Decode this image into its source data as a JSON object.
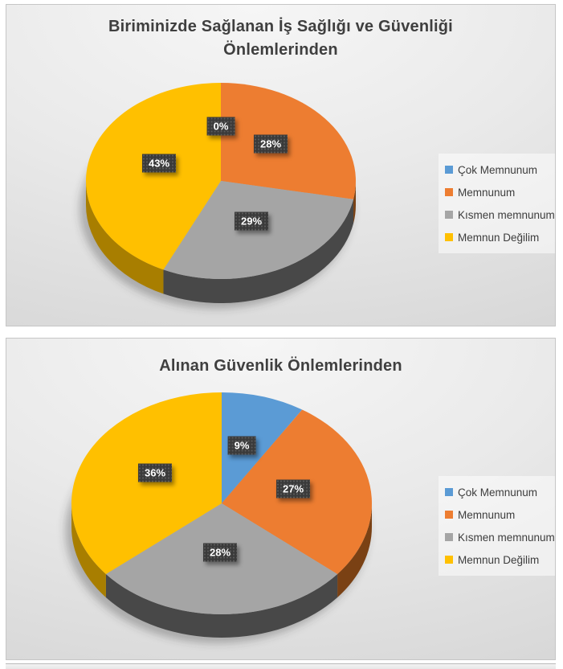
{
  "chart_data": [
    {
      "type": "pie",
      "style": "3d-pie",
      "title": "Biriminizde Sağlanan İş Sağlığı ve Güvenliği Önlemlerinden",
      "categories": [
        "Çok Memnunum",
        "Memnunum",
        "Kısmen memnunum",
        "Memnun Değilim"
      ],
      "values": [
        0,
        28,
        29,
        43
      ],
      "data_labels": [
        "0%",
        "28%",
        "29%",
        "43%"
      ],
      "colors": [
        "#5B9BD5",
        "#ED7D31",
        "#A5A5A5",
        "#FFC000"
      ],
      "side_colors": [
        "#35618E",
        "#7A4114",
        "#484848",
        "#A87E00"
      ],
      "legend_position": "right",
      "label_box_color": "#3A3A3A",
      "label_text_color": "#FFFFFF"
    },
    {
      "type": "pie",
      "style": "3d-pie",
      "title": "Alınan Güvenlik Önlemlerinden",
      "categories": [
        "Çok Memnunum",
        "Memnunum",
        "Kısmen memnunum",
        "Memnun Değilim"
      ],
      "values": [
        9,
        27,
        28,
        36
      ],
      "data_labels": [
        "9%",
        "27%",
        "28%",
        "36%"
      ],
      "colors": [
        "#5B9BD5",
        "#ED7D31",
        "#A5A5A5",
        "#FFC000"
      ],
      "side_colors": [
        "#35618E",
        "#7A4114",
        "#484848",
        "#A87E00"
      ],
      "legend_position": "right",
      "label_box_color": "#3A3A3A",
      "label_text_color": "#FFFFFF"
    }
  ]
}
